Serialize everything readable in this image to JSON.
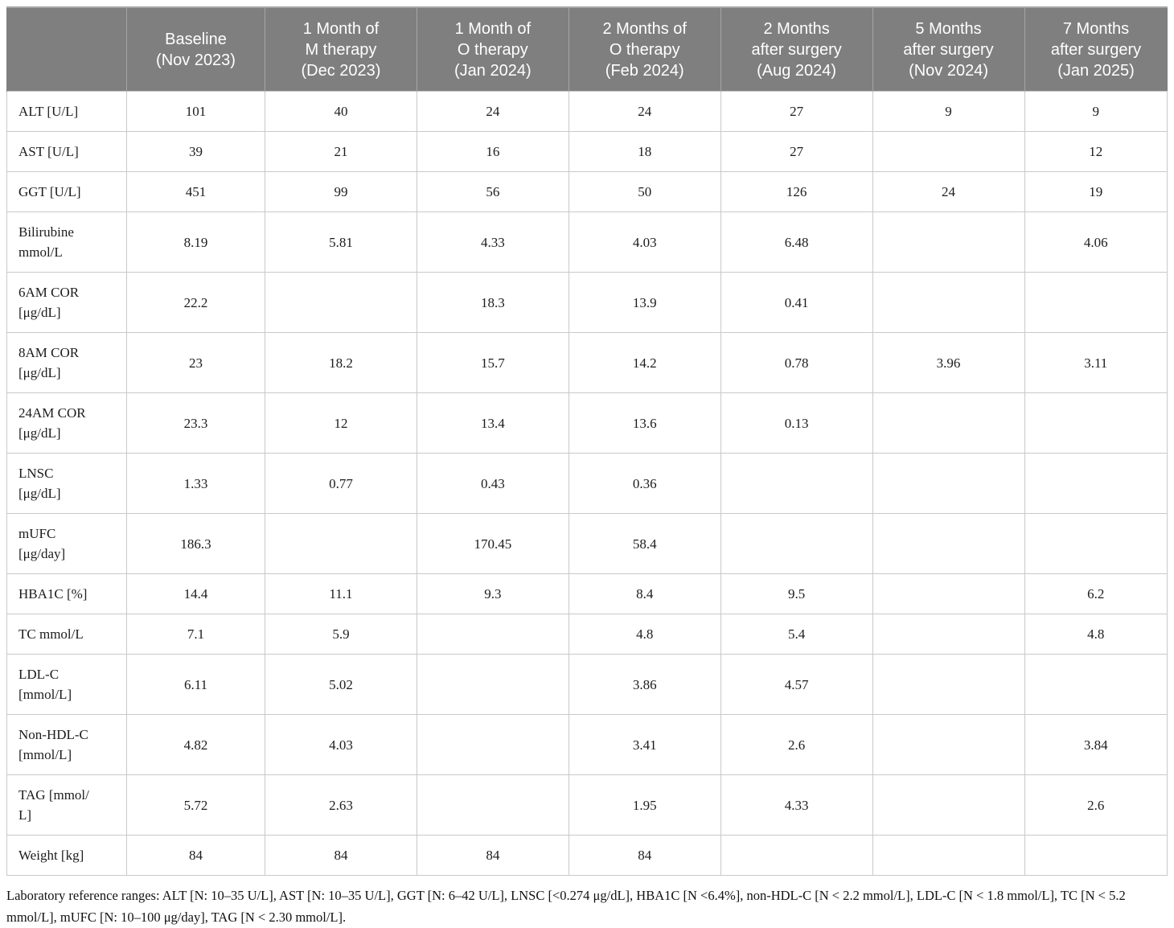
{
  "table": {
    "columns": [
      "",
      "Baseline\n(Nov 2023)",
      "1 Month of\nM therapy\n(Dec 2023)",
      "1 Month of\nO therapy\n(Jan 2024)",
      "2 Months of\nO therapy\n(Feb 2024)",
      "2 Months\nafter surgery\n(Aug 2024)",
      "5 Months\nafter surgery\n(Nov 2024)",
      "7 Months\nafter surgery\n(Jan 2025)"
    ],
    "rows": [
      {
        "label": "ALT [U/L]",
        "values": [
          "101",
          "40",
          "24",
          "24",
          "27",
          "9",
          "9"
        ]
      },
      {
        "label": "AST [U/L]",
        "values": [
          "39",
          "21",
          "16",
          "18",
          "27",
          "",
          "12"
        ]
      },
      {
        "label": "GGT [U/L]",
        "values": [
          "451",
          "99",
          "56",
          "50",
          "126",
          "24",
          "19"
        ]
      },
      {
        "label": "Bilirubine\nmmol/L",
        "values": [
          "8.19",
          "5.81",
          "4.33",
          "4.03",
          "6.48",
          "",
          "4.06"
        ]
      },
      {
        "label": "6AM COR\n[μg/dL]",
        "values": [
          "22.2",
          "",
          "18.3",
          "13.9",
          "0.41",
          "",
          ""
        ]
      },
      {
        "label": "8AM COR\n[μg/dL]",
        "values": [
          "23",
          "18.2",
          "15.7",
          "14.2",
          "0.78",
          "3.96",
          "3.11"
        ]
      },
      {
        "label": "24AM COR\n[μg/dL]",
        "values": [
          "23.3",
          "12",
          "13.4",
          "13.6",
          "0.13",
          "",
          ""
        ]
      },
      {
        "label": "LNSC\n[μg/dL]",
        "values": [
          "1.33",
          "0.77",
          "0.43",
          "0.36",
          "",
          "",
          ""
        ]
      },
      {
        "label": "mUFC\n[μg/day]",
        "values": [
          "186.3",
          "",
          "170.45",
          "58.4",
          "",
          "",
          ""
        ]
      },
      {
        "label": "HBA1C [%]",
        "values": [
          "14.4",
          "11.1",
          "9.3",
          "8.4",
          "9.5",
          "",
          "6.2"
        ]
      },
      {
        "label": "TC mmol/L",
        "values": [
          "7.1",
          "5.9",
          "",
          "4.8",
          "5.4",
          "",
          "4.8"
        ]
      },
      {
        "label": "LDL-C\n[mmol/L]",
        "values": [
          "6.11",
          "5.02",
          "",
          "3.86",
          "4.57",
          "",
          ""
        ]
      },
      {
        "label": "Non-HDL-C\n[mmol/L]",
        "values": [
          "4.82",
          "4.03",
          "",
          "3.41",
          "2.6",
          "",
          "3.84"
        ]
      },
      {
        "label": "TAG [mmol/\nL]",
        "values": [
          "5.72",
          "2.63",
          "",
          "1.95",
          "4.33",
          "",
          "2.6"
        ]
      },
      {
        "label": "Weight [kg]",
        "values": [
          "84",
          "84",
          "84",
          "84",
          "",
          "",
          ""
        ]
      }
    ]
  },
  "footnote": "Laboratory reference ranges: ALT [N: 10–35 U/L], AST [N: 10–35 U/L], GGT [N: 6–42 U/L], LNSC [<0.274 μg/dL], HBA1C [N <6.4%], non-HDL-C [N < 2.2 mmol/L], LDL-C [N < 1.8 mmol/L], TC [N < 5.2 mmol/L], mUFC [N: 10–100 μg/day], TAG [N < 2.30 mmol/L].",
  "colors": {
    "header_bg": "#7f7f7f",
    "header_text": "#ffffff",
    "border": "#c9c9c9",
    "body_text": "#1c1c1c"
  }
}
